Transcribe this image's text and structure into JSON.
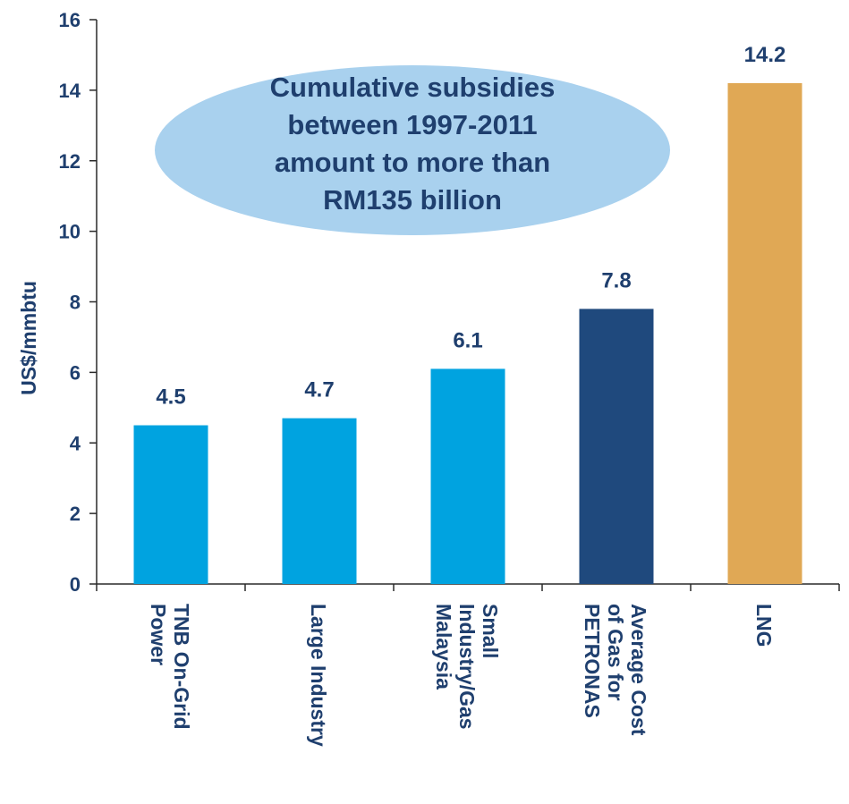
{
  "chart_data": {
    "type": "bar",
    "title": "",
    "xlabel": "",
    "ylabel": "US$/mmbtu",
    "ylim": [
      0,
      16
    ],
    "yticks": [
      0,
      2,
      4,
      6,
      8,
      10,
      12,
      14,
      16
    ],
    "grid": false,
    "categories": [
      [
        "TNB On-Grid",
        "Power"
      ],
      [
        "Large Industry"
      ],
      [
        "Small",
        "Industry/Gas",
        "Malaysia"
      ],
      [
        "Average Cost",
        "of Gas for",
        "PETRONAS"
      ],
      [
        "LNG"
      ]
    ],
    "values": [
      4.5,
      4.7,
      6.1,
      7.8,
      14.2
    ],
    "data_labels": [
      "4.5",
      "4.7",
      "6.1",
      "7.8",
      "14.2"
    ],
    "colors": [
      "#00a3e0",
      "#00a3e0",
      "#00a3e0",
      "#1f497d",
      "#e0a855"
    ],
    "annotation": {
      "lines": [
        "Cumulative subsidies",
        "between 1997-2011",
        "amount to more than",
        "RM135 billion"
      ],
      "fill": "#a9d1ee"
    }
  },
  "colors": {
    "text": "#1f3f6e",
    "axis": "#2a2a2a"
  }
}
